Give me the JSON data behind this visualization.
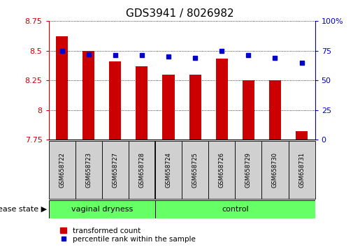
{
  "title": "GDS3941 / 8026982",
  "samples": [
    "GSM658722",
    "GSM658723",
    "GSM658727",
    "GSM658728",
    "GSM658724",
    "GSM658725",
    "GSM658726",
    "GSM658729",
    "GSM658730",
    "GSM658731"
  ],
  "transformed_count": [
    8.62,
    8.5,
    8.41,
    8.37,
    8.3,
    8.3,
    8.43,
    8.25,
    8.25,
    7.82
  ],
  "percentile_rank": [
    75,
    72,
    71,
    71,
    70,
    69,
    75,
    71,
    69,
    65
  ],
  "ylim_left": [
    7.75,
    8.75
  ],
  "ylim_right": [
    0,
    100
  ],
  "yticks_left": [
    7.75,
    8.0,
    8.25,
    8.5,
    8.75
  ],
  "yticks_right": [
    0,
    25,
    50,
    75,
    100
  ],
  "ytick_labels_left": [
    "7.75",
    "8",
    "8.25",
    "8.5",
    "8.75"
  ],
  "ytick_labels_right": [
    "0",
    "25",
    "50",
    "75",
    "100%"
  ],
  "bar_color": "#cc0000",
  "dot_color": "#0000cc",
  "bar_bottom": 7.75,
  "group_labels": [
    "vaginal dryness",
    "control"
  ],
  "group_split": 4,
  "group_color": "#66ff66",
  "disease_state_label": "disease state",
  "legend_bar_label": "transformed count",
  "legend_dot_label": "percentile rank within the sample",
  "left_axis_color": "#cc0000",
  "right_axis_color": "#0000cc",
  "sample_box_color": "#d0d0d0",
  "title_fontsize": 11
}
